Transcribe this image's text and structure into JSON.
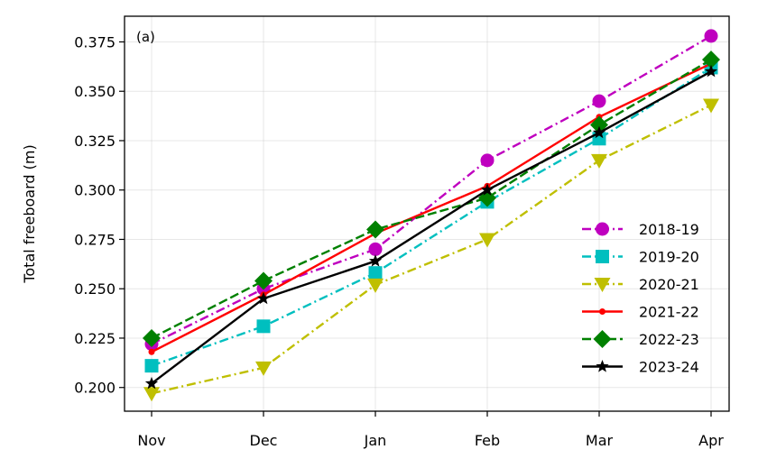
{
  "chart_data": {
    "type": "line",
    "panel_label": "(a)",
    "ylabel": "Total freeboard (m)",
    "xlabel": "",
    "categories": [
      "Nov",
      "Dec",
      "Jan",
      "Feb",
      "Mar",
      "Apr"
    ],
    "ylim": [
      0.188,
      0.388
    ],
    "yticks": [
      "0.200",
      "0.225",
      "0.250",
      "0.275",
      "0.300",
      "0.325",
      "0.350",
      "0.375"
    ],
    "grid": true,
    "legend_position": "lower-right",
    "series": [
      {
        "name": "2018-19",
        "color": "#bf00bf",
        "dash": "dashdot",
        "marker": "circle",
        "values": [
          0.222,
          0.25,
          0.27,
          0.315,
          0.345,
          0.378
        ]
      },
      {
        "name": "2019-20",
        "color": "#00bfbf",
        "dash": "dashdot",
        "marker": "square",
        "values": [
          0.211,
          0.231,
          0.258,
          0.294,
          0.326,
          0.362
        ]
      },
      {
        "name": "2020-21",
        "color": "#bfbf00",
        "dash": "dashdot",
        "marker": "triangle-down",
        "values": [
          0.197,
          0.21,
          0.252,
          0.275,
          0.315,
          0.343
        ]
      },
      {
        "name": "2021-22",
        "color": "#ff0000",
        "dash": "solid",
        "marker": "dot",
        "values": [
          0.218,
          0.247,
          0.278,
          0.302,
          0.337,
          0.364
        ]
      },
      {
        "name": "2022-23",
        "color": "#008000",
        "dash": "dashed",
        "marker": "diamond",
        "values": [
          0.225,
          0.254,
          0.28,
          0.296,
          0.333,
          0.366
        ]
      },
      {
        "name": "2023-24",
        "color": "#000000",
        "dash": "solid",
        "marker": "star",
        "values": [
          0.202,
          0.245,
          0.264,
          0.3,
          0.329,
          0.36
        ]
      }
    ]
  }
}
